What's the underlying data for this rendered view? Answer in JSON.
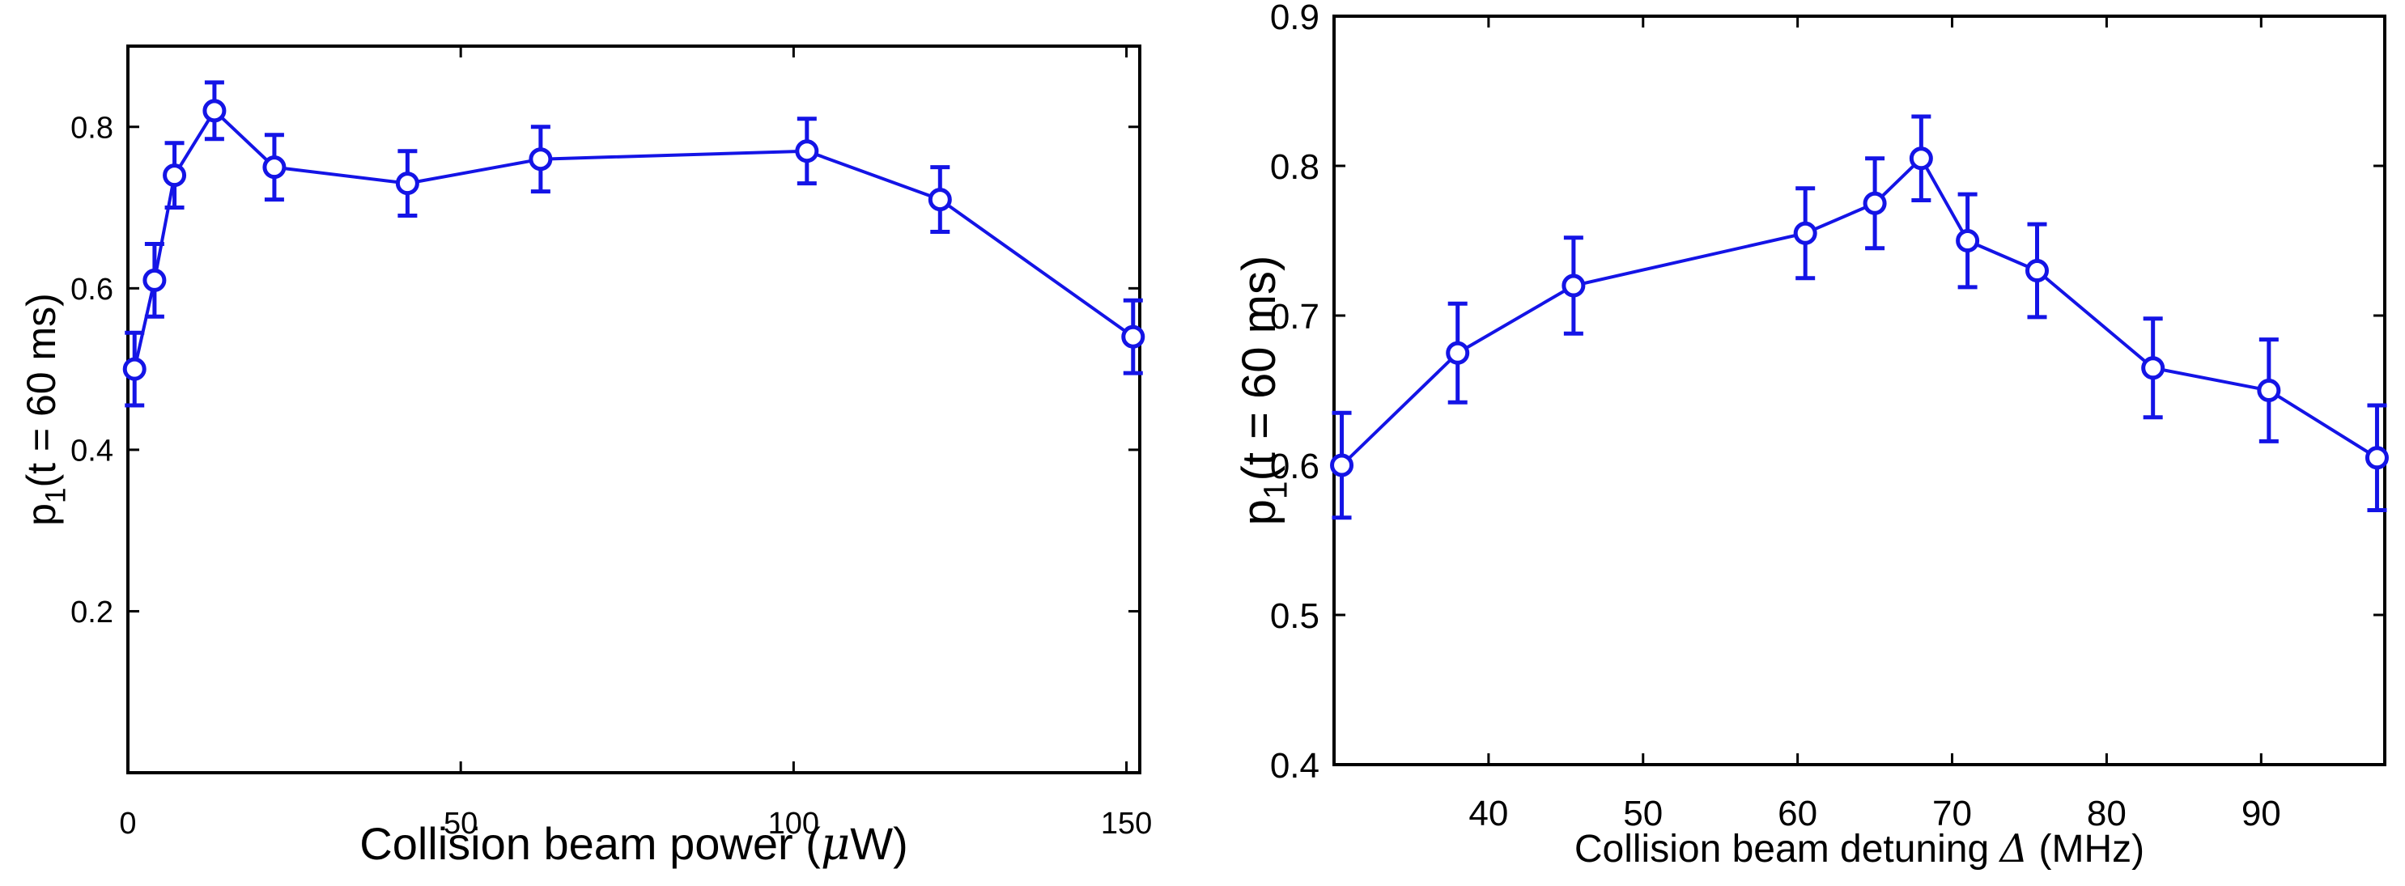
{
  "chart_data": [
    {
      "type": "line",
      "title": "",
      "xlabel": "Collision beam power (",
      "xlabel_symbol": "μ",
      "xlabel_tail": "W)",
      "ylabel_main": "p",
      "ylabel_sub": "1",
      "ylabel_tail": "(t = 60 ms)",
      "xlim": [
        0,
        152
      ],
      "ylim": [
        0.0,
        0.9
      ],
      "xticks": [
        0,
        50,
        100,
        150
      ],
      "yticks": [
        0.2,
        0.4,
        0.6,
        0.8
      ],
      "xtick_labels": [
        "0",
        "50",
        "100",
        "150"
      ],
      "ytick_labels": [
        "0.2",
        "0.4",
        "0.6",
        "0.8"
      ],
      "grid": false,
      "color": "#1414e6",
      "series": [
        {
          "name": "p1",
          "x": [
            1,
            4,
            7,
            13,
            22,
            42,
            62,
            102,
            122,
            151
          ],
          "y": [
            0.5,
            0.61,
            0.74,
            0.82,
            0.75,
            0.73,
            0.76,
            0.77,
            0.71,
            0.54
          ],
          "err": [
            0.045,
            0.045,
            0.04,
            0.035,
            0.04,
            0.04,
            0.04,
            0.04,
            0.04,
            0.045
          ]
        }
      ]
    },
    {
      "type": "line",
      "title": "",
      "xlabel": "Collision beam detuning ",
      "xlabel_symbol": "Δ",
      "xlabel_tail": " (MHz)",
      "ylabel_main": "p",
      "ylabel_sub": "1",
      "ylabel_tail": "(t = 60 ms)",
      "xlim": [
        30,
        98
      ],
      "ylim": [
        0.4,
        0.9
      ],
      "xticks": [
        40,
        50,
        60,
        70,
        80,
        90
      ],
      "yticks": [
        0.4,
        0.5,
        0.6,
        0.7,
        0.8,
        0.9
      ],
      "xtick_labels": [
        "40",
        "50",
        "60",
        "70",
        "80",
        "90"
      ],
      "ytick_labels": [
        "0.4",
        "0.5",
        "0.6",
        "0.7",
        "0.8",
        "0.9"
      ],
      "grid": false,
      "color": "#1414e6",
      "series": [
        {
          "name": "p1",
          "x": [
            30.5,
            38,
            45.5,
            60.5,
            65,
            68,
            71,
            75.5,
            83,
            90.5,
            97.5
          ],
          "y": [
            0.6,
            0.675,
            0.72,
            0.755,
            0.775,
            0.805,
            0.75,
            0.73,
            0.665,
            0.65,
            0.605
          ],
          "err": [
            0.035,
            0.033,
            0.032,
            0.03,
            0.03,
            0.028,
            0.031,
            0.031,
            0.033,
            0.034,
            0.035
          ]
        }
      ]
    }
  ]
}
